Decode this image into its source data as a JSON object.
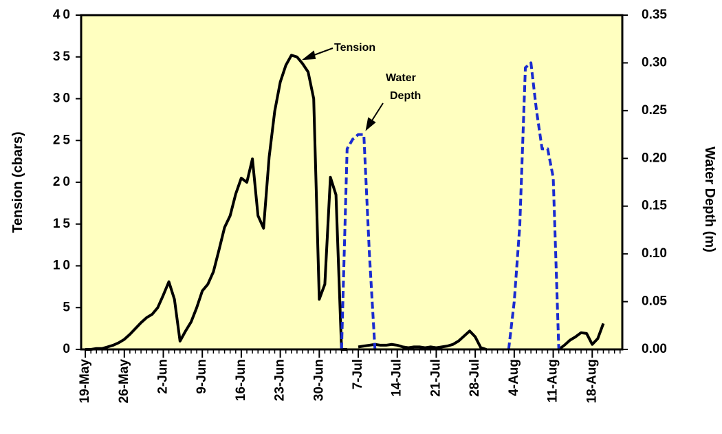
{
  "chart_data": {
    "type": "line",
    "ylabel": "Tension  (cbars)",
    "y2label": "Water  Depth  (m)",
    "xlim": [
      -0.75,
      96.4
    ],
    "xticks": [
      {
        "value": 0,
        "label": "19-May"
      },
      {
        "value": 7,
        "label": "26-May"
      },
      {
        "value": 14,
        "label": "2-Jun"
      },
      {
        "value": 21,
        "label": "9-Jun"
      },
      {
        "value": 28,
        "label": "16-Jun"
      },
      {
        "value": 35,
        "label": "23-Jun"
      },
      {
        "value": 42,
        "label": "30-Jun"
      },
      {
        "value": 49,
        "label": "7-Jul"
      },
      {
        "value": 56,
        "label": "14-Jul"
      },
      {
        "value": 63,
        "label": "21-Jul"
      },
      {
        "value": 70,
        "label": "28-Jul"
      },
      {
        "value": 77,
        "label": "4-Aug"
      },
      {
        "value": 84,
        "label": "11-Aug"
      },
      {
        "value": 91,
        "label": "18-Aug"
      }
    ],
    "ylim": [
      0,
      40
    ],
    "yticks": [
      0,
      5,
      10,
      15,
      20,
      25,
      30,
      35,
      40
    ],
    "y2lim": [
      0,
      0.35
    ],
    "y2ticks": [
      {
        "value": 0,
        "label": "0.00"
      },
      0.05,
      {
        "value": 0.1,
        "label": "0.10"
      },
      0.15,
      {
        "value": 0.2,
        "label": "0.20"
      },
      0.25,
      {
        "value": 0.3,
        "label": "0.30"
      },
      0.35
    ],
    "series": [
      {
        "name": "Tension",
        "color": "#000000",
        "dash": false,
        "x": [
          0,
          1,
          2,
          3,
          4,
          5,
          6,
          7,
          8,
          9,
          10,
          11,
          12,
          13,
          14,
          15,
          16,
          17,
          18,
          19,
          20,
          21,
          22,
          23,
          24,
          25,
          26,
          27,
          28,
          29,
          30,
          31,
          32,
          33,
          34,
          35,
          36,
          37,
          38,
          39,
          40,
          41,
          42,
          43,
          44,
          45,
          46,
          47,
          48,
          49,
          50,
          51,
          52,
          53,
          54,
          55,
          56,
          57,
          58,
          59,
          60,
          61,
          62,
          63,
          64,
          65,
          66,
          67,
          68,
          69,
          70,
          71,
          72,
          73,
          85,
          86,
          87,
          88,
          89,
          90,
          91,
          92,
          93
        ],
        "values": [
          0,
          0,
          0.1,
          0.1,
          0.3,
          0.5,
          0.8,
          1.2,
          1.8,
          2.5,
          3.2,
          3.8,
          4.2,
          5.0,
          6.5,
          8.1,
          6.0,
          1.0,
          2.2,
          3.3,
          5.0,
          7.0,
          7.8,
          9.3,
          11.9,
          14.6,
          16.0,
          18.6,
          20.5,
          20.0,
          22.8,
          16.0,
          14.5,
          23.0,
          28.5,
          32.0,
          34.0,
          35.2,
          35.0,
          34.2,
          33.2,
          30.0,
          6.0,
          7.8,
          20.6,
          18.5,
          0,
          0,
          null,
          0.3,
          0.4,
          0.5,
          0.6,
          0.5,
          0.5,
          0.6,
          0.5,
          0.3,
          0.2,
          0.3,
          0.3,
          0.2,
          0.3,
          0.2,
          0.3,
          0.4,
          0.6,
          1.0,
          1.6,
          2.2,
          1.5,
          0.2,
          0,
          null,
          0,
          0.5,
          1.1,
          1.5,
          2.0,
          1.9,
          0.6,
          1.3,
          3.1
        ]
      },
      {
        "name": "Water Depth",
        "color": "#1a2bd0",
        "dash": true,
        "axis": "y2",
        "x": [
          46,
          47,
          48,
          49,
          50,
          51,
          52,
          60,
          76,
          77,
          78,
          79,
          80,
          81,
          82,
          83,
          84,
          85
        ],
        "values": [
          0,
          0.21,
          0.22,
          0.225,
          0.225,
          0.1,
          0,
          null,
          0,
          0.05,
          0.13,
          0.295,
          0.3,
          0.25,
          0.21,
          0.21,
          0.18,
          0
        ]
      }
    ],
    "annotations": [
      "Tension",
      "Water",
      "Depth"
    ]
  }
}
